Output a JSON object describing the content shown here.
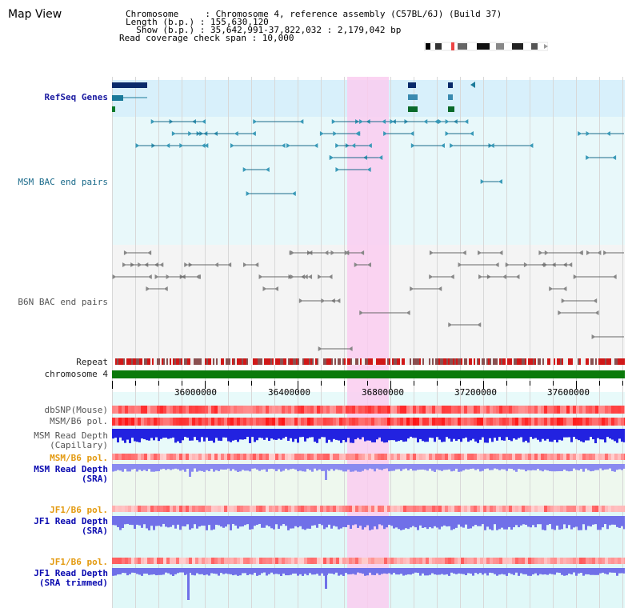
{
  "page_title": "Map View",
  "header": {
    "line1": "Chromosome     : Chromosome 4, reference assembly (C57BL/6J) (Build 37)",
    "line2": "Length (b.p.) : 155,630,120",
    "line3": "  Show (b.p.) : 35,642,991-37,822,032 : 2,179,042 bp",
    "line4": "Read coverage check span : 10,000"
  },
  "tracks": {
    "refseq": "RefSeq Genes",
    "msm_bac": "MSM BAC end pairs",
    "b6n_bac": "B6N BAC end pairs",
    "repeat": "Repeat",
    "chromosome": "chromosome 4",
    "dbsnp": "dbSNP(Mouse)",
    "msm_b6_pol_1": "MSM/B6 pol.",
    "msm_depth_cap": "MSM Read Depth\n(Capillary)",
    "msm_b6_pol_2": "MSM/B6 pol.",
    "msm_depth_sra": "MSM Read Depth\n(SRA)",
    "jf1_b6_pol_1": "JF1/B6 pol.",
    "jf1_depth_sra": "JF1 Read Depth\n(SRA)",
    "jf1_b6_pol_2": "JF1/B6 pol.",
    "jf1_depth_trim": "JF1 Read Depth\n(SRA trimmed)"
  },
  "axis": {
    "ticks": [
      "36000000",
      "36400000",
      "36800000",
      "37200000",
      "37600000"
    ]
  },
  "colors": {
    "highlight": "#f8cdf0",
    "refseq_band": "#d8f0fb",
    "msm_band": "#e8f8fa",
    "b6n_band": "#f4f4f4",
    "chromosome": "#0a7a0a",
    "depth_blue": "#2222e0",
    "depth_light": "#8a8af0",
    "pol_red": "#e83030"
  }
}
